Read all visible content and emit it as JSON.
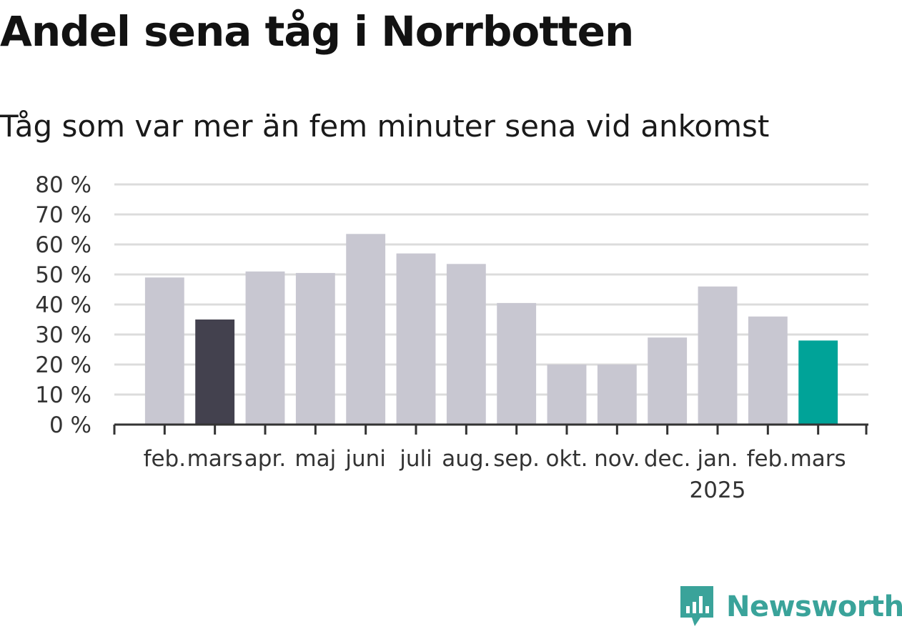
{
  "chart_data": {
    "type": "bar",
    "title": "Andel sena tåg i Norrbotten",
    "subtitle": "Tåg som var mer än fem minuter sena vid ankomst",
    "xlabel": "",
    "ylabel": "",
    "categories": [
      "feb.",
      "mars",
      "apr.",
      "maj",
      "juni",
      "juli",
      "aug.",
      "sep.",
      "okt.",
      "nov.",
      "dec.",
      "jan.",
      "feb.",
      "mars"
    ],
    "category_sublabels": [
      "",
      "",
      "",
      "",
      "",
      "",
      "",
      "",
      "",
      "",
      "",
      "2025",
      "",
      ""
    ],
    "values": [
      49,
      35,
      51,
      50.5,
      63.5,
      57,
      53.5,
      40.5,
      20,
      20,
      29,
      46,
      36,
      28
    ],
    "ylim": [
      0,
      80
    ],
    "yticks": [
      0,
      10,
      20,
      30,
      40,
      50,
      60,
      70,
      80
    ],
    "ytick_suffix": " %",
    "grid": true,
    "legend": "none",
    "colors": {
      "default": "#c8c7d1",
      "highlight_previous_year": "#43414e",
      "highlight_latest": "#00a398",
      "grid": "#dcdcdc",
      "axis": "#333333"
    },
    "bar_colors": [
      "default",
      "highlight_previous_year",
      "default",
      "default",
      "default",
      "default",
      "default",
      "default",
      "default",
      "default",
      "default",
      "default",
      "default",
      "highlight_latest"
    ]
  },
  "branding": {
    "logo_text": "Newsworthy",
    "logo_icon": "bar-chart-speech-icon",
    "color": "#3aa39a"
  }
}
